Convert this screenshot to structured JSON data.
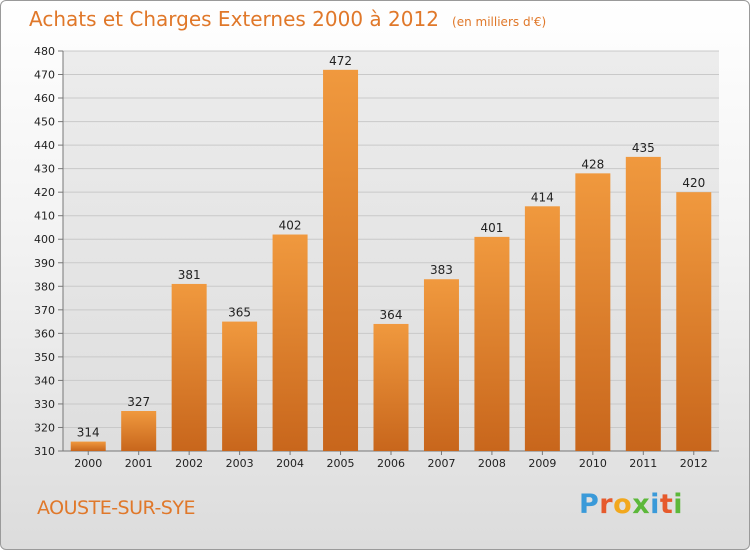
{
  "header": {
    "title": "Achats et Charges Externes 2000 à 2012",
    "unit": "(en milliers d'€)"
  },
  "footer": {
    "location": "AOUSTE-SUR-SYE",
    "brand_letters": [
      "P",
      "r",
      "o",
      "x",
      "i",
      "t",
      "i"
    ],
    "brand_colors": [
      "#3a9ad9",
      "#e65a2c",
      "#f2a81d",
      "#5cb83a",
      "#3a9ad9",
      "#e65a2c",
      "#5cb83a"
    ]
  },
  "chart_data": {
    "type": "bar",
    "title": "Achats et Charges Externes 2000 à 2012",
    "subtitle": "(en milliers d'€)",
    "categories": [
      "2000",
      "2001",
      "2002",
      "2003",
      "2004",
      "2005",
      "2006",
      "2007",
      "2008",
      "2009",
      "2010",
      "2011",
      "2012"
    ],
    "values": [
      314,
      327,
      381,
      365,
      402,
      472,
      364,
      383,
      401,
      414,
      428,
      435,
      420
    ],
    "value_labels": [
      "314",
      "327",
      "381",
      "365",
      "402",
      "472",
      "364",
      "383",
      "401",
      "414",
      "428",
      "435",
      "420"
    ],
    "ylim": [
      310,
      480
    ],
    "yticks": [
      310,
      320,
      330,
      340,
      350,
      360,
      370,
      380,
      390,
      400,
      410,
      420,
      430,
      440,
      450,
      460,
      470,
      480
    ],
    "ytick_labels": [
      "310",
      "320",
      "330",
      "340",
      "350",
      "360",
      "370",
      "380",
      "390",
      "400",
      "410",
      "420",
      "430",
      "440",
      "450",
      "460",
      "470",
      "480"
    ],
    "grid": true,
    "bar_color": "#f0993e",
    "bar_dark": "#c8661c"
  }
}
